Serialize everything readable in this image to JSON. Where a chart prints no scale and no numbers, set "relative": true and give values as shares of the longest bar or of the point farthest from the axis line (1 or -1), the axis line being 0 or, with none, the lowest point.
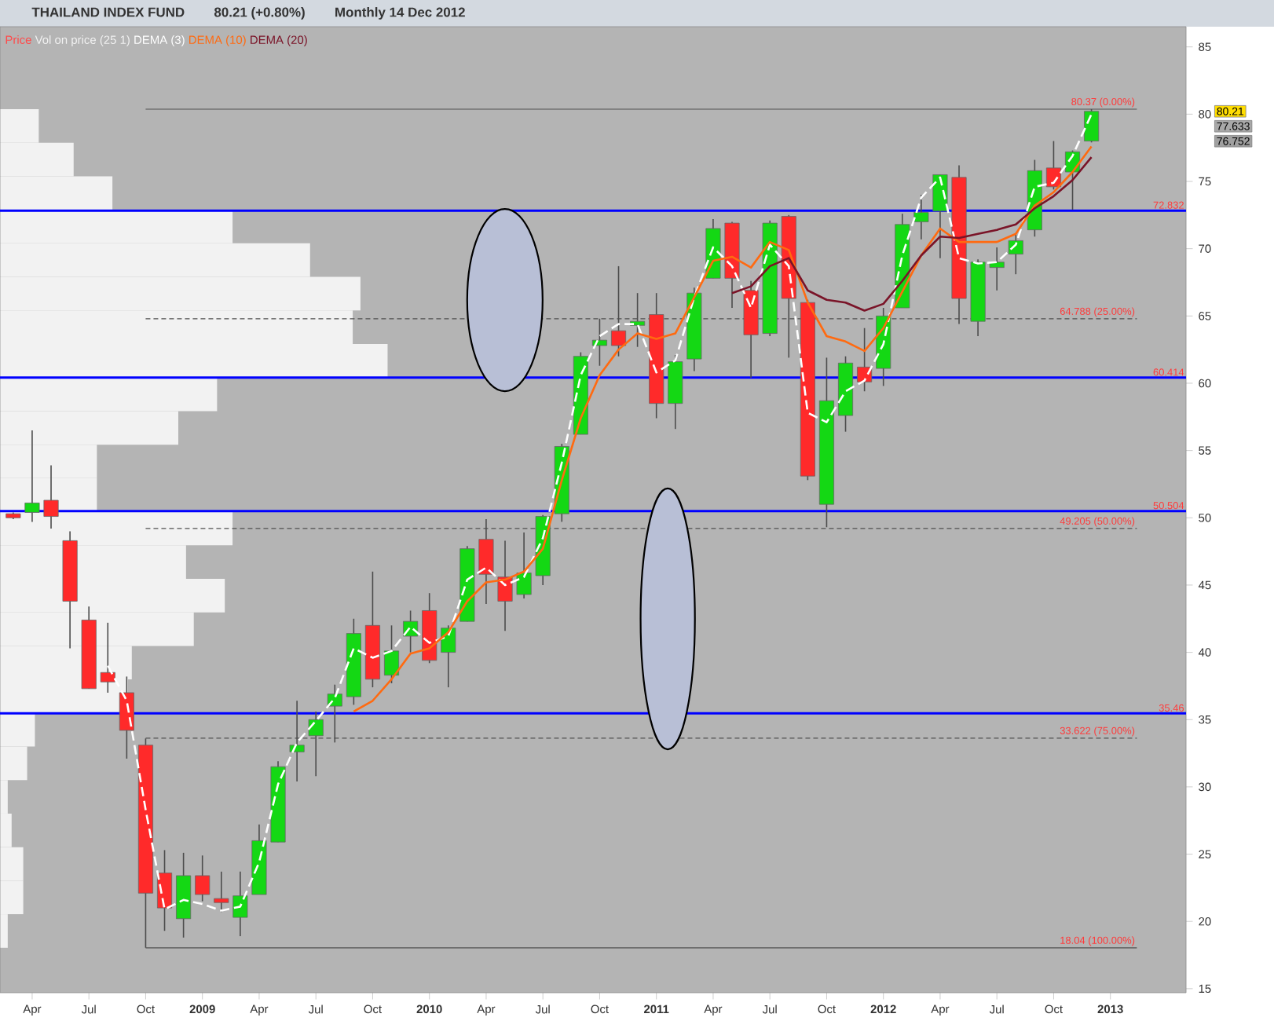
{
  "chart_data": [
    {
      "type": "candlestick",
      "title": "THAILAND INDEX FUND",
      "subtitle": "80.21 (+0.80%)",
      "annotations": [
        "Monthly  14 Dec 2012",
        "77.633",
        "76.752"
      ],
      "x": [
        "2008-03",
        "2008-04",
        "2008-05",
        "2008-06",
        "2008-07",
        "2008-08",
        "2008-09",
        "2008-10",
        "2008-11",
        "2008-12",
        "2009-01",
        "2009-02",
        "2009-03",
        "2009-04",
        "2009-05",
        "2009-06",
        "2009-07",
        "2009-08",
        "2009-09",
        "2009-10",
        "2009-11",
        "2009-12",
        "2010-01",
        "2010-02",
        "2010-03",
        "2010-04",
        "2010-05",
        "2010-06",
        "2010-07",
        "2010-08",
        "2010-09",
        "2010-10",
        "2010-11",
        "2010-12",
        "2011-01",
        "2011-02",
        "2011-03",
        "2011-04",
        "2011-05",
        "2011-06",
        "2011-07",
        "2011-08",
        "2011-09",
        "2011-10",
        "2011-11",
        "2011-12",
        "2012-01",
        "2012-02",
        "2012-03",
        "2012-04",
        "2012-05",
        "2012-06",
        "2012-07",
        "2012-08",
        "2012-09",
        "2012-10",
        "2012-11",
        "2012-12"
      ],
      "series": [
        {
          "name": "Price",
          "color": "#ff4a4a",
          "ohlc": [
            [
              50.3,
              50.4,
              49.9,
              50.0
            ],
            [
              50.4,
              56.5,
              49.7,
              51.1
            ],
            [
              51.3,
              53.9,
              49.2,
              50.1
            ],
            [
              48.3,
              49.0,
              40.3,
              43.8
            ],
            [
              42.4,
              43.4,
              37.3,
              37.3
            ],
            [
              38.5,
              42.2,
              37.0,
              37.8
            ],
            [
              37.0,
              38.2,
              32.1,
              34.2
            ],
            [
              33.1,
              33.6,
              18.04,
              22.1
            ],
            [
              23.6,
              25.3,
              19.3,
              21.0
            ],
            [
              20.2,
              25.1,
              18.8,
              23.4
            ],
            [
              23.4,
              24.9,
              21.5,
              22.0
            ],
            [
              21.7,
              23.7,
              20.7,
              21.4
            ],
            [
              20.3,
              23.7,
              18.9,
              21.9
            ],
            [
              22.0,
              27.2,
              22.0,
              26.0
            ],
            [
              25.9,
              31.9,
              25.9,
              31.5
            ],
            [
              32.6,
              36.4,
              30.4,
              33.1
            ],
            [
              33.8,
              35.6,
              30.8,
              35.0
            ],
            [
              36.0,
              37.6,
              33.3,
              36.9
            ],
            [
              36.7,
              42.5,
              36.1,
              41.4
            ],
            [
              42.0,
              46.0,
              37.4,
              38.0
            ],
            [
              38.3,
              42.0,
              37.7,
              40.1
            ],
            [
              41.2,
              43.1,
              40.0,
              42.3
            ],
            [
              43.1,
              44.4,
              39.2,
              39.4
            ],
            [
              40.0,
              42.0,
              37.4,
              41.8
            ],
            [
              42.3,
              47.9,
              42.3,
              47.7
            ],
            [
              48.4,
              49.9,
              43.6,
              45.8
            ],
            [
              45.6,
              48.3,
              41.6,
              43.8
            ],
            [
              44.3,
              48.9,
              44.0,
              45.9
            ],
            [
              45.7,
              50.2,
              45.0,
              50.1
            ],
            [
              50.3,
              55.5,
              49.7,
              55.3
            ],
            [
              56.2,
              62.3,
              56.2,
              62.0
            ],
            [
              62.8,
              64.8,
              61.3,
              63.2
            ],
            [
              63.9,
              68.7,
              62.0,
              62.8
            ],
            [
              64.3,
              66.7,
              62.7,
              64.6
            ],
            [
              65.1,
              66.7,
              57.4,
              58.5
            ],
            [
              58.5,
              62.1,
              56.6,
              61.6
            ],
            [
              61.8,
              67.1,
              60.9,
              66.7
            ],
            [
              67.8,
              72.2,
              67.8,
              71.5
            ],
            [
              71.9,
              72.0,
              65.6,
              67.8
            ],
            [
              66.9,
              67.6,
              60.4,
              63.6
            ],
            [
              63.7,
              72.1,
              63.5,
              71.9
            ],
            [
              72.4,
              72.5,
              61.9,
              66.3
            ],
            [
              66.0,
              66.2,
              52.8,
              53.1
            ],
            [
              51.0,
              61.9,
              49.3,
              58.7
            ],
            [
              57.6,
              62.0,
              56.4,
              61.5
            ],
            [
              61.2,
              64.1,
              59.4,
              60.1
            ],
            [
              61.1,
              65.6,
              59.8,
              65.0
            ],
            [
              65.6,
              72.6,
              65.6,
              71.8
            ],
            [
              72.0,
              74.0,
              70.7,
              72.7
            ],
            [
              72.8,
              75.5,
              69.3,
              75.5
            ],
            [
              75.3,
              76.2,
              64.4,
              66.3
            ],
            [
              64.6,
              69.2,
              63.5,
              69.0
            ],
            [
              68.6,
              70.1,
              66.9,
              69.0
            ],
            [
              69.6,
              71.1,
              68.1,
              70.6
            ],
            [
              71.4,
              76.6,
              70.9,
              75.8
            ],
            [
              76.0,
              78.0,
              74.4,
              74.6
            ],
            [
              75.7,
              77.3,
              72.9,
              77.2
            ],
            [
              78.0,
              80.37,
              77.9,
              80.21
            ]
          ],
          "value_labels": [
            null,
            null,
            null,
            null,
            null,
            null,
            null,
            null,
            null,
            null,
            null,
            null,
            null,
            null,
            null,
            null,
            null,
            null,
            null,
            null,
            null,
            null,
            null,
            null,
            null,
            null,
            null,
            null,
            null,
            null,
            null,
            null,
            null,
            null,
            null,
            null,
            null,
            null,
            null,
            null,
            null,
            null,
            null,
            null,
            null,
            null,
            null,
            null,
            null,
            null,
            null,
            null,
            null,
            null,
            null,
            null,
            null,
            "80.21"
          ],
          "colors": [
            "#ff2a2a",
            "#14d814",
            "#ff2a2a",
            "#ff2a2a",
            "#ff2a2a",
            "#ff2a2a",
            "#ff2a2a",
            "#ff2a2a",
            "#ff2a2a",
            "#14d814",
            "#ff2a2a",
            "#ff2a2a",
            "#14d814",
            "#14d814",
            "#14d814",
            "#14d814",
            "#14d814",
            "#14d814",
            "#14d814",
            "#ff2a2a",
            "#14d814",
            "#14d814",
            "#ff2a2a",
            "#14d814",
            "#14d814",
            "#ff2a2a",
            "#ff2a2a",
            "#14d814",
            "#14d814",
            "#14d814",
            "#14d814",
            "#14d814",
            "#ff2a2a",
            "#14d814",
            "#ff2a2a",
            "#14d814",
            "#14d814",
            "#14d814",
            "#ff2a2a",
            "#ff2a2a",
            "#14d814",
            "#ff2a2a",
            "#ff2a2a",
            "#14d814",
            "#14d814",
            "#ff2a2a",
            "#14d814",
            "#14d814",
            "#14d814",
            "#14d814",
            "#ff2a2a",
            "#14d814",
            "#14d814",
            "#14d814",
            "#14d814",
            "#ff2a2a",
            "#14d814",
            "#14d814"
          ]
        },
        {
          "type": "line",
          "name": "DEMA (3)",
          "color": "#ffffff",
          "line_style": "dashed",
          "values": [
            null,
            null,
            null,
            null,
            null,
            39.0,
            36.4,
            28.3,
            20.9,
            21.6,
            21.3,
            20.8,
            21.1,
            24.4,
            30.2,
            33.3,
            34.9,
            36.6,
            40.3,
            39.6,
            40.1,
            41.9,
            40.7,
            41.2,
            45.4,
            46.3,
            45.0,
            45.6,
            48.5,
            54.1,
            60.6,
            63.5,
            64.4,
            64.4,
            60.8,
            61.7,
            66.4,
            70.1,
            68.7,
            65.6,
            70.3,
            68.7,
            57.8,
            57.1,
            59.4,
            60.2,
            62.9,
            69.5,
            73.8,
            75.3,
            69.3,
            68.9,
            69.0,
            70.3,
            74.6,
            74.9,
            76.9,
            80.0
          ]
        },
        {
          "type": "line",
          "name": "DEMA (10)",
          "color": "#ff6a10",
          "values": [
            null,
            null,
            null,
            null,
            null,
            null,
            null,
            null,
            null,
            null,
            null,
            null,
            null,
            null,
            null,
            null,
            null,
            null,
            35.6,
            36.4,
            38.0,
            39.9,
            40.3,
            41.5,
            43.8,
            45.2,
            45.4,
            46.0,
            47.7,
            52.8,
            57.4,
            60.6,
            62.5,
            63.7,
            63.3,
            63.7,
            66.4,
            69.1,
            69.4,
            68.6,
            70.5,
            69.9,
            66.0,
            63.5,
            63.1,
            62.4,
            64.1,
            66.8,
            69.5,
            71.5,
            70.5,
            70.5,
            70.5,
            71.1,
            73.2,
            74.2,
            75.7,
            77.6
          ]
        },
        {
          "type": "line",
          "name": "DEMA (20)",
          "color": "#7a1428",
          "values": [
            null,
            null,
            null,
            null,
            null,
            null,
            null,
            null,
            null,
            null,
            null,
            null,
            null,
            null,
            null,
            null,
            null,
            null,
            null,
            null,
            null,
            null,
            null,
            null,
            null,
            null,
            null,
            null,
            null,
            null,
            null,
            null,
            null,
            null,
            null,
            null,
            null,
            null,
            66.7,
            67.2,
            68.7,
            69.3,
            66.9,
            66.2,
            66.0,
            65.4,
            65.9,
            67.6,
            69.5,
            70.9,
            70.8,
            71.1,
            71.4,
            71.8,
            73.0,
            73.9,
            75.1,
            76.8
          ]
        }
      ],
      "ref_lines": [
        {
          "axis": "y",
          "value": 72.832,
          "label": "72.832",
          "color": "#0000ff"
        },
        {
          "axis": "y",
          "value": 60.414,
          "label": "60.414",
          "color": "#0000ff"
        },
        {
          "axis": "y",
          "value": 50.504,
          "label": "50.504",
          "color": "#0000ff"
        },
        {
          "axis": "y",
          "value": 35.46,
          "label": "35.46",
          "color": "#0000ff"
        },
        {
          "axis": "y",
          "value": 80.37,
          "label": "80.37 (0.00%)",
          "color": "#505050",
          "line_style": "solid"
        },
        {
          "axis": "y",
          "value": 64.788,
          "label": "64.788 (25.00%)",
          "color": "#505050",
          "line_style": "dashed"
        },
        {
          "axis": "y",
          "value": 49.205,
          "label": "49.205 (50.00%)",
          "color": "#505050",
          "line_style": "dashed"
        },
        {
          "axis": "y",
          "value": 33.622,
          "label": "33.622 (75.00%)",
          "color": "#505050",
          "line_style": "dashed"
        },
        {
          "axis": "y",
          "value": 18.04,
          "label": "18.04 (100.00%)",
          "color": "#505050",
          "line_style": "solid"
        }
      ],
      "xlim": [
        "2008-02-10",
        "2013-05-01"
      ],
      "ylim": [
        14.7,
        86.5
      ],
      "xticks": [
        {
          "value": "2008-04",
          "label": "Apr"
        },
        {
          "value": "2008-07",
          "label": "Jul"
        },
        {
          "value": "2008-10",
          "label": "Oct"
        },
        {
          "value": "2009-01",
          "label": "2009"
        },
        {
          "value": "2009-04",
          "label": "Apr"
        },
        {
          "value": "2009-07",
          "label": "Jul"
        },
        {
          "value": "2009-10",
          "label": "Oct"
        },
        {
          "value": "2010-01",
          "label": "2010"
        },
        {
          "value": "2010-04",
          "label": "Apr"
        },
        {
          "value": "2010-07",
          "label": "Jul"
        },
        {
          "value": "2010-10",
          "label": "Oct"
        },
        {
          "value": "2011-01",
          "label": "2011"
        },
        {
          "value": "2011-04",
          "label": "Apr"
        },
        {
          "value": "2011-07",
          "label": "Jul"
        },
        {
          "value": "2011-10",
          "label": "Oct"
        },
        {
          "value": "2012-01",
          "label": "2012"
        },
        {
          "value": "2012-04",
          "label": "Apr"
        },
        {
          "value": "2012-07",
          "label": "Jul"
        },
        {
          "value": "2012-10",
          "label": "Oct"
        },
        {
          "value": "2013-01",
          "label": "2013"
        }
      ],
      "yticks": [
        15,
        20,
        25,
        30,
        35,
        40,
        45,
        50,
        55,
        60,
        65,
        70,
        75,
        80,
        85
      ],
      "legend": "top left"
    },
    {
      "type": "bar",
      "orientation": "horizontal",
      "relative": true,
      "categories": [
        null,
        null,
        null,
        null,
        null,
        null,
        null,
        null,
        null,
        null,
        null,
        null,
        null,
        null,
        null,
        null,
        null,
        null,
        null,
        null,
        null,
        null,
        null,
        null,
        null
      ],
      "series": [
        {
          "name": "Vol on price (25 1)",
          "color": "#f2f2f2",
          "values": [
            0.1,
            0.19,
            0.29,
            0.6,
            0.8,
            0.93,
            0.91,
            1,
            0.56,
            0.46,
            0.25,
            0.25,
            0.6,
            0.48,
            0.58,
            0.5,
            0.34,
            0.33,
            0.09,
            0.07,
            0.02,
            0.03,
            0.06,
            0.06,
            0.02
          ]
        }
      ]
    }
  ]
}
